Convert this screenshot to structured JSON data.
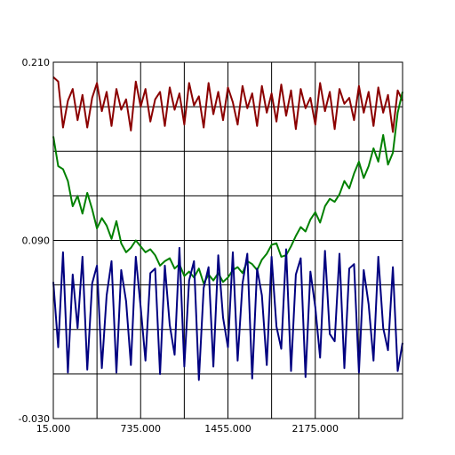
{
  "chart_data": {
    "type": "line",
    "title": "",
    "xlabel": "",
    "ylabel": "",
    "xlim": [
      15,
      2895
    ],
    "ylim": [
      -0.03,
      0.21
    ],
    "xtick_values": [
      15,
      375,
      735,
      1095,
      1455,
      1815,
      2175,
      2535
    ],
    "xtick_labels": [
      "15.000",
      "",
      "735.000",
      "",
      "1455.000",
      "",
      "2175.000",
      ""
    ],
    "ytick_values": [
      -0.03,
      0.0,
      0.03,
      0.06,
      0.09,
      0.12,
      0.15,
      0.18,
      0.21
    ],
    "ytick_labels": [
      "-0.030",
      "",
      "",
      "",
      "0.090",
      "",
      "",
      "",
      "0.210"
    ],
    "grid": true,
    "legend": "none",
    "series": [
      {
        "color": "#8b0000",
        "x": [
          15,
          55,
          95,
          135,
          175,
          215,
          255,
          295,
          335,
          375,
          415,
          455,
          495,
          535,
          575,
          615,
          655,
          695,
          735,
          775,
          815,
          855,
          895,
          935,
          975,
          1015,
          1055,
          1095,
          1135,
          1175,
          1215,
          1255,
          1295,
          1335,
          1375,
          1415,
          1455,
          1495,
          1535,
          1575,
          1615,
          1655,
          1695,
          1735,
          1775,
          1815,
          1855,
          1895,
          1935,
          1975,
          2015,
          2055,
          2095,
          2135,
          2175,
          2215,
          2255,
          2295,
          2335,
          2375,
          2415,
          2455,
          2495,
          2535,
          2575,
          2615,
          2655,
          2695,
          2735,
          2775,
          2815,
          2855,
          2895
        ],
        "y": [
          0.2,
          0.197,
          0.166,
          0.184,
          0.192,
          0.171,
          0.188,
          0.166,
          0.186,
          0.196,
          0.177,
          0.19,
          0.167,
          0.192,
          0.178,
          0.185,
          0.164,
          0.197,
          0.18,
          0.192,
          0.17,
          0.185,
          0.19,
          0.167,
          0.193,
          0.178,
          0.189,
          0.168,
          0.196,
          0.181,
          0.187,
          0.166,
          0.196,
          0.175,
          0.19,
          0.171,
          0.193,
          0.183,
          0.168,
          0.194,
          0.179,
          0.189,
          0.167,
          0.194,
          0.176,
          0.189,
          0.17,
          0.195,
          0.174,
          0.191,
          0.165,
          0.192,
          0.179,
          0.186,
          0.168,
          0.196,
          0.177,
          0.19,
          0.165,
          0.192,
          0.182,
          0.186,
          0.171,
          0.194,
          0.176,
          0.19,
          0.167,
          0.193,
          0.176,
          0.188,
          0.163,
          0.191,
          0.184
        ]
      },
      {
        "color": "#008000",
        "x": [
          15,
          55,
          95,
          135,
          175,
          215,
          255,
          295,
          335,
          375,
          415,
          455,
          495,
          535,
          575,
          615,
          655,
          695,
          735,
          775,
          815,
          855,
          895,
          935,
          975,
          1015,
          1055,
          1095,
          1135,
          1175,
          1215,
          1255,
          1295,
          1335,
          1375,
          1415,
          1455,
          1495,
          1535,
          1575,
          1615,
          1655,
          1695,
          1735,
          1775,
          1815,
          1855,
          1895,
          1935,
          1975,
          2015,
          2055,
          2095,
          2135,
          2175,
          2215,
          2255,
          2295,
          2335,
          2375,
          2415,
          2455,
          2495,
          2535,
          2575,
          2615,
          2655,
          2695,
          2735,
          2775,
          2815,
          2855,
          2895
        ],
        "y": [
          0.16,
          0.14,
          0.138,
          0.13,
          0.113,
          0.12,
          0.108,
          0.122,
          0.111,
          0.098,
          0.105,
          0.1,
          0.091,
          0.103,
          0.088,
          0.082,
          0.085,
          0.09,
          0.086,
          0.082,
          0.084,
          0.08,
          0.073,
          0.076,
          0.078,
          0.071,
          0.074,
          0.066,
          0.069,
          0.065,
          0.071,
          0.061,
          0.067,
          0.063,
          0.068,
          0.062,
          0.065,
          0.07,
          0.072,
          0.068,
          0.076,
          0.074,
          0.07,
          0.077,
          0.081,
          0.087,
          0.088,
          0.079,
          0.08,
          0.086,
          0.093,
          0.099,
          0.096,
          0.104,
          0.109,
          0.102,
          0.113,
          0.118,
          0.116,
          0.121,
          0.13,
          0.125,
          0.135,
          0.143,
          0.132,
          0.14,
          0.152,
          0.143,
          0.161,
          0.141,
          0.149,
          0.176,
          0.19
        ]
      },
      {
        "color": "#000080",
        "x": [
          15,
          55,
          95,
          135,
          175,
          215,
          255,
          295,
          335,
          375,
          415,
          455,
          495,
          535,
          575,
          615,
          655,
          695,
          735,
          775,
          815,
          855,
          895,
          935,
          975,
          1015,
          1055,
          1095,
          1135,
          1175,
          1215,
          1255,
          1295,
          1335,
          1375,
          1415,
          1455,
          1495,
          1535,
          1575,
          1615,
          1655,
          1695,
          1735,
          1775,
          1815,
          1855,
          1895,
          1935,
          1975,
          2015,
          2055,
          2095,
          2135,
          2175,
          2215,
          2255,
          2295,
          2335,
          2375,
          2415,
          2455,
          2495,
          2535,
          2575,
          2615,
          2655,
          2695,
          2735,
          2775,
          2815,
          2855,
          2895
        ],
        "y": [
          0.062,
          0.018,
          0.082,
          0.001,
          0.067,
          0.031,
          0.079,
          0.003,
          0.061,
          0.073,
          0.004,
          0.053,
          0.076,
          0.001,
          0.07,
          0.049,
          0.006,
          0.079,
          0.045,
          0.009,
          0.068,
          0.071,
          0.0,
          0.073,
          0.033,
          0.013,
          0.085,
          0.005,
          0.063,
          0.076,
          -0.004,
          0.058,
          0.072,
          0.005,
          0.08,
          0.038,
          0.018,
          0.082,
          0.009,
          0.061,
          0.081,
          -0.003,
          0.071,
          0.053,
          0.006,
          0.079,
          0.032,
          0.017,
          0.084,
          0.002,
          0.067,
          0.078,
          -0.002,
          0.069,
          0.045,
          0.011,
          0.083,
          0.027,
          0.022,
          0.081,
          0.004,
          0.071,
          0.074,
          0.001,
          0.07,
          0.047,
          0.009,
          0.079,
          0.031,
          0.016,
          0.072,
          0.002,
          0.021
        ]
      }
    ]
  }
}
